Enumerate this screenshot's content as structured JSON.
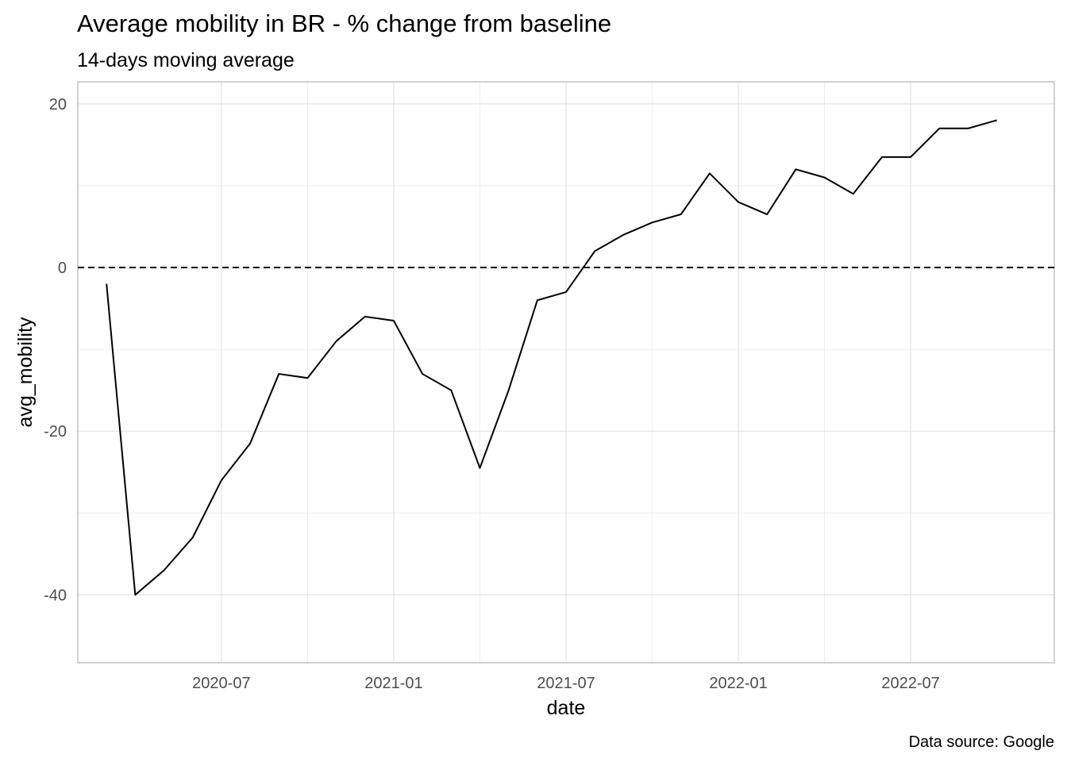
{
  "chart_data": {
    "type": "line",
    "title": "Average mobility in BR - % change from baseline",
    "subtitle": "14-days moving average",
    "x_label": "date",
    "y_label": "avg_mobility",
    "caption": "Data source: Google",
    "x": [
      "2020-03",
      "2020-04",
      "2020-05",
      "2020-06",
      "2020-07",
      "2020-08",
      "2020-09",
      "2020-10",
      "2020-11",
      "2020-12",
      "2021-01",
      "2021-02",
      "2021-03",
      "2021-04",
      "2021-05",
      "2021-06",
      "2021-07",
      "2021-08",
      "2021-09",
      "2021-10",
      "2021-11",
      "2021-12",
      "2022-01",
      "2022-02",
      "2022-03",
      "2022-04",
      "2022-05",
      "2022-06",
      "2022-07",
      "2022-08",
      "2022-09",
      "2022-10"
    ],
    "series": [
      {
        "name": "avg_mobility",
        "color": "#000000",
        "values": [
          -2,
          -40,
          -37,
          -33,
          -26,
          -21.5,
          -13,
          -13.5,
          -9,
          -6,
          -6.5,
          -13,
          -15,
          -24.5,
          -15,
          -4,
          -3,
          2,
          4,
          5.5,
          6.5,
          11.5,
          8,
          6.5,
          12,
          11,
          9,
          13.5,
          13.5,
          17,
          17,
          18
        ]
      }
    ],
    "xlim": [
      "2020-02",
      "2022-12"
    ],
    "xticks": [
      "2020-07",
      "2021-01",
      "2021-07",
      "2022-01",
      "2022-07"
    ],
    "ylim": [
      -48.3,
      22.7
    ],
    "yticks": [
      -40,
      -20,
      0,
      20
    ],
    "hline": 0,
    "grid": true
  }
}
